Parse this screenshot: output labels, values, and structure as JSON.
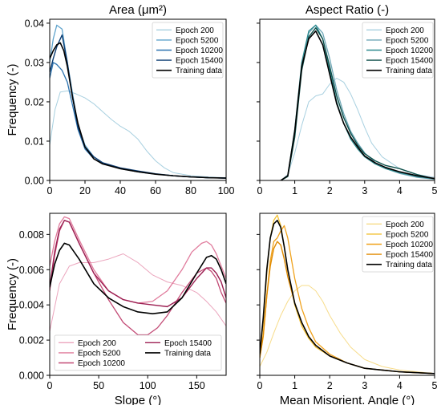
{
  "chart_data": [
    {
      "type": "line",
      "title": "Area (μm²)",
      "xlabel": "",
      "ylabel": "Frequency (-)",
      "xlim": [
        0,
        100
      ],
      "ylim": [
        0,
        0.041
      ],
      "xticks": [
        "0",
        "20",
        "40",
        "60",
        "80",
        "100"
      ],
      "yticks": [
        "0.00",
        "0.01",
        "0.02",
        "0.03",
        "0.04"
      ],
      "legend": "top-right",
      "series": [
        {
          "name": "Epoch 200",
          "color": "#a8d0e0",
          "width": 1,
          "x": [
            0,
            3,
            6,
            10,
            15,
            20,
            25,
            30,
            35,
            40,
            45,
            50,
            55,
            60,
            65,
            70,
            80,
            90,
            100
          ],
          "y": [
            0.009,
            0.018,
            0.0225,
            0.0228,
            0.022,
            0.021,
            0.0195,
            0.0175,
            0.0155,
            0.0138,
            0.0125,
            0.0105,
            0.0075,
            0.005,
            0.0032,
            0.002,
            0.0012,
            0.0009,
            0.0007
          ]
        },
        {
          "name": "Epoch 5200",
          "color": "#5fa3cc",
          "width": 1.3,
          "x": [
            0,
            2,
            4,
            7,
            10,
            13,
            16,
            20,
            25,
            30,
            40,
            50,
            60,
            70,
            80,
            90,
            100
          ],
          "y": [
            0.03,
            0.036,
            0.0395,
            0.0385,
            0.03,
            0.022,
            0.014,
            0.009,
            0.006,
            0.0045,
            0.003,
            0.0022,
            0.0016,
            0.0012,
            0.0009,
            0.0007,
            0.0006
          ]
        },
        {
          "name": "Epoch 10200",
          "color": "#2c73b0",
          "width": 1.3,
          "x": [
            0,
            2,
            4,
            7,
            10,
            13,
            16,
            20,
            25,
            30,
            40,
            50,
            60,
            70,
            80,
            90,
            100
          ],
          "y": [
            0.026,
            0.03,
            0.0295,
            0.028,
            0.025,
            0.019,
            0.013,
            0.008,
            0.0055,
            0.0043,
            0.003,
            0.0022,
            0.0016,
            0.0012,
            0.0009,
            0.0007,
            0.0006
          ]
        },
        {
          "name": "Epoch 15400",
          "color": "#0c3d73",
          "width": 1.4,
          "x": [
            0,
            2,
            4,
            7,
            10,
            13,
            16,
            20,
            25,
            30,
            40,
            50,
            60,
            70,
            80,
            90,
            100
          ],
          "y": [
            0.0275,
            0.031,
            0.034,
            0.037,
            0.03,
            0.021,
            0.0135,
            0.0085,
            0.006,
            0.0045,
            0.0032,
            0.0024,
            0.0017,
            0.0012,
            0.0009,
            0.0007,
            0.0006
          ]
        },
        {
          "name": "Training data",
          "color": "#000000",
          "width": 1.6,
          "x": [
            0,
            2,
            4,
            6,
            8,
            10,
            13,
            16,
            20,
            25,
            30,
            40,
            50,
            60,
            70,
            80,
            90,
            100
          ],
          "y": [
            0.031,
            0.033,
            0.0345,
            0.035,
            0.033,
            0.029,
            0.021,
            0.0145,
            0.0085,
            0.0055,
            0.0042,
            0.003,
            0.0022,
            0.0016,
            0.0012,
            0.0009,
            0.0007,
            0.0006
          ]
        }
      ]
    },
    {
      "type": "line",
      "title": "Aspect Ratio (-)",
      "xlabel": "",
      "ylabel": "",
      "xlim": [
        0,
        5
      ],
      "ylim": [
        0,
        0.041
      ],
      "xticks": [
        "0",
        "1",
        "2",
        "3",
        "4",
        "5"
      ],
      "yticks": [],
      "legend": "top-right",
      "series": [
        {
          "name": "Epoch 200",
          "color": "#a8d0e0",
          "width": 1,
          "x": [
            0.6,
            0.8,
            1.0,
            1.2,
            1.4,
            1.6,
            1.8,
            2.0,
            2.2,
            2.4,
            2.6,
            2.8,
            3.0,
            3.2,
            3.5,
            4.0,
            4.5,
            5.0
          ],
          "y": [
            0.0,
            0.0015,
            0.007,
            0.014,
            0.02,
            0.0215,
            0.022,
            0.0245,
            0.026,
            0.025,
            0.022,
            0.018,
            0.0135,
            0.0095,
            0.006,
            0.003,
            0.0015,
            0.0008
          ]
        },
        {
          "name": "Epoch 5200",
          "color": "#6fa8b8",
          "width": 1.3,
          "x": [
            0.6,
            0.8,
            1.0,
            1.2,
            1.4,
            1.6,
            1.8,
            2.0,
            2.2,
            2.4,
            2.6,
            2.8,
            3.0,
            3.3,
            3.6,
            4.0,
            4.5,
            5.0
          ],
          "y": [
            0.0,
            0.001,
            0.012,
            0.029,
            0.0375,
            0.0395,
            0.0375,
            0.031,
            0.023,
            0.017,
            0.0125,
            0.0095,
            0.007,
            0.0045,
            0.003,
            0.0018,
            0.0008,
            0.0003
          ]
        },
        {
          "name": "Epoch 10200",
          "color": "#2e8a8f",
          "width": 1.3,
          "x": [
            0.6,
            0.8,
            1.0,
            1.2,
            1.4,
            1.6,
            1.8,
            2.0,
            2.2,
            2.4,
            2.6,
            2.8,
            3.0,
            3.3,
            3.6,
            4.0,
            4.5,
            5.0
          ],
          "y": [
            0.0,
            0.0012,
            0.013,
            0.03,
            0.038,
            0.0395,
            0.036,
            0.028,
            0.02,
            0.0145,
            0.0105,
            0.008,
            0.006,
            0.0042,
            0.003,
            0.002,
            0.001,
            0.0004
          ]
        },
        {
          "name": "Epoch 15400",
          "color": "#0d4f4a",
          "width": 1.4,
          "x": [
            0.6,
            0.8,
            1.0,
            1.2,
            1.4,
            1.6,
            1.8,
            2.0,
            2.2,
            2.4,
            2.6,
            2.8,
            3.0,
            3.3,
            3.6,
            4.0,
            4.5,
            5.0
          ],
          "y": [
            0.0,
            0.001,
            0.011,
            0.028,
            0.0365,
            0.0388,
            0.036,
            0.029,
            0.0215,
            0.016,
            0.012,
            0.009,
            0.0068,
            0.005,
            0.0038,
            0.003,
            0.0015,
            0.0004
          ]
        },
        {
          "name": "Training data",
          "color": "#000000",
          "width": 1.6,
          "x": [
            0.6,
            0.8,
            1.0,
            1.2,
            1.4,
            1.6,
            1.8,
            2.0,
            2.2,
            2.4,
            2.6,
            2.8,
            3.0,
            3.3,
            3.6,
            4.0,
            4.5,
            5.0
          ],
          "y": [
            0.0,
            0.0012,
            0.0125,
            0.029,
            0.036,
            0.038,
            0.0345,
            0.027,
            0.0195,
            0.0145,
            0.011,
            0.0085,
            0.0062,
            0.0045,
            0.0033,
            0.0022,
            0.0012,
            0.0005
          ]
        }
      ]
    },
    {
      "type": "line",
      "title": "",
      "xlabel": "Slope (°)",
      "ylabel": "Frequency (-)",
      "xlim": [
        0,
        180
      ],
      "ylim": [
        0,
        0.0092
      ],
      "xticks": [
        "0",
        "50",
        "100",
        "150"
      ],
      "yticks": [
        "0.000",
        "0.002",
        "0.004",
        "0.006",
        "0.008"
      ],
      "legend": "bottom, two columns",
      "series": [
        {
          "name": "Epoch 200",
          "color": "#eba5bd",
          "width": 1,
          "x": [
            0,
            10,
            20,
            30,
            45,
            60,
            75,
            90,
            105,
            120,
            135,
            150,
            160,
            170,
            180
          ],
          "y": [
            0.0025,
            0.0052,
            0.0062,
            0.0064,
            0.0064,
            0.0066,
            0.0069,
            0.0064,
            0.0057,
            0.0053,
            0.0051,
            0.0047,
            0.0042,
            0.0036,
            0.0028
          ]
        },
        {
          "name": "Epoch 5200",
          "color": "#e07b9c",
          "width": 1.3,
          "x": [
            0,
            5,
            10,
            15,
            20,
            30,
            45,
            60,
            75,
            90,
            105,
            120,
            135,
            145,
            155,
            160,
            165,
            170,
            175,
            180
          ],
          "y": [
            0.0062,
            0.0076,
            0.0086,
            0.009,
            0.0089,
            0.0077,
            0.006,
            0.0048,
            0.0043,
            0.0041,
            0.0042,
            0.0048,
            0.006,
            0.007,
            0.0075,
            0.0076,
            0.0074,
            0.0069,
            0.0062,
            0.0055
          ]
        },
        {
          "name": "Epoch 10200",
          "color": "#c24a75",
          "width": 1.3,
          "x": [
            0,
            5,
            10,
            15,
            20,
            30,
            45,
            60,
            75,
            90,
            100,
            110,
            120,
            135,
            150,
            160,
            165,
            170,
            175,
            180
          ],
          "y": [
            0.0048,
            0.0068,
            0.0082,
            0.0088,
            0.0087,
            0.0075,
            0.0058,
            0.0043,
            0.003,
            0.0023,
            0.0023,
            0.0027,
            0.0034,
            0.0047,
            0.0058,
            0.0061,
            0.0059,
            0.0055,
            0.0047,
            0.0041
          ]
        },
        {
          "name": "Epoch 15400",
          "color": "#9c1f52",
          "width": 1.4,
          "x": [
            0,
            5,
            10,
            15,
            20,
            30,
            45,
            60,
            75,
            90,
            105,
            120,
            135,
            150,
            160,
            165,
            170,
            175,
            180
          ],
          "y": [
            0.005,
            0.007,
            0.0083,
            0.0088,
            0.0087,
            0.0075,
            0.0058,
            0.0048,
            0.0043,
            0.0041,
            0.004,
            0.0039,
            0.0044,
            0.0055,
            0.0061,
            0.0061,
            0.0058,
            0.0053,
            0.0044
          ]
        },
        {
          "name": "Training data",
          "color": "#000000",
          "width": 1.6,
          "x": [
            0,
            5,
            10,
            15,
            20,
            30,
            45,
            60,
            75,
            90,
            105,
            120,
            135,
            150,
            160,
            165,
            170,
            175,
            180
          ],
          "y": [
            0.005,
            0.0063,
            0.0071,
            0.0075,
            0.0074,
            0.0066,
            0.0052,
            0.0044,
            0.0039,
            0.0036,
            0.0035,
            0.0036,
            0.0044,
            0.0058,
            0.0067,
            0.0068,
            0.0066,
            0.006,
            0.0052
          ]
        }
      ]
    },
    {
      "type": "line",
      "title": "",
      "xlabel": "Mean Misorient. Angle (°)",
      "ylabel": "",
      "xlim": [
        0,
        5
      ],
      "ylim": [
        0,
        0.0092
      ],
      "xticks": [
        "0",
        "1",
        "2",
        "3",
        "4",
        "5"
      ],
      "yticks": [],
      "legend": "top-right",
      "series": [
        {
          "name": "Epoch 200",
          "color": "#f7dc8a",
          "width": 1,
          "x": [
            0.0,
            0.2,
            0.4,
            0.6,
            0.8,
            1.0,
            1.2,
            1.4,
            1.6,
            1.8,
            2.0,
            2.3,
            2.6,
            3.0,
            3.5,
            4.0,
            4.5,
            5.0
          ],
          "y": [
            0.0005,
            0.0013,
            0.0024,
            0.0034,
            0.0042,
            0.0048,
            0.0051,
            0.0051,
            0.0048,
            0.0042,
            0.0034,
            0.0024,
            0.0016,
            0.0009,
            0.0005,
            0.0003,
            0.0002,
            0.0001
          ]
        },
        {
          "name": "Epoch 5200",
          "color": "#f2c031",
          "width": 1.3,
          "x": [
            0.0,
            0.1,
            0.2,
            0.3,
            0.4,
            0.5,
            0.6,
            0.7,
            0.8,
            1.0,
            1.2,
            1.4,
            1.6,
            2.0,
            2.5,
            3.0,
            3.5,
            4.0,
            5.0
          ],
          "y": [
            0.0012,
            0.003,
            0.0058,
            0.0078,
            0.0088,
            0.0091,
            0.0085,
            0.0073,
            0.006,
            0.004,
            0.0028,
            0.0021,
            0.0016,
            0.0011,
            0.0007,
            0.0004,
            0.0003,
            0.0002,
            0.0001
          ]
        },
        {
          "name": "Epoch 10200",
          "color": "#f0a21c",
          "width": 1.3,
          "x": [
            0.0,
            0.1,
            0.2,
            0.3,
            0.4,
            0.5,
            0.6,
            0.7,
            0.8,
            1.0,
            1.2,
            1.4,
            1.6,
            2.0,
            2.5,
            3.0,
            3.5,
            4.0,
            5.0
          ],
          "y": [
            0.001,
            0.0022,
            0.0045,
            0.0065,
            0.0076,
            0.0078,
            0.0082,
            0.0085,
            0.0078,
            0.0055,
            0.0038,
            0.0027,
            0.0019,
            0.0012,
            0.0007,
            0.0004,
            0.0003,
            0.0002,
            0.0001
          ]
        },
        {
          "name": "Epoch 15400",
          "color": "#e08a00",
          "width": 1.4,
          "x": [
            0.0,
            0.1,
            0.2,
            0.3,
            0.4,
            0.5,
            0.6,
            0.7,
            0.8,
            1.0,
            1.2,
            1.4,
            1.6,
            2.0,
            2.5,
            3.0,
            3.5,
            4.0,
            5.0
          ],
          "y": [
            0.001,
            0.0023,
            0.0045,
            0.0062,
            0.0072,
            0.0076,
            0.0074,
            0.0066,
            0.0056,
            0.0041,
            0.003,
            0.0022,
            0.0017,
            0.0011,
            0.0007,
            0.0004,
            0.0003,
            0.0002,
            0.0001
          ]
        },
        {
          "name": "Training data",
          "color": "#000000",
          "width": 1.6,
          "x": [
            0.0,
            0.1,
            0.2,
            0.3,
            0.4,
            0.5,
            0.6,
            0.7,
            0.8,
            1.0,
            1.2,
            1.4,
            1.6,
            2.0,
            2.5,
            3.0,
            3.5,
            4.0,
            5.0
          ],
          "y": [
            0.0012,
            0.0033,
            0.006,
            0.0078,
            0.0086,
            0.0088,
            0.0084,
            0.0073,
            0.006,
            0.0041,
            0.003,
            0.0022,
            0.0017,
            0.0011,
            0.0007,
            0.0004,
            0.0003,
            0.0002,
            0.0001
          ]
        }
      ]
    }
  ]
}
